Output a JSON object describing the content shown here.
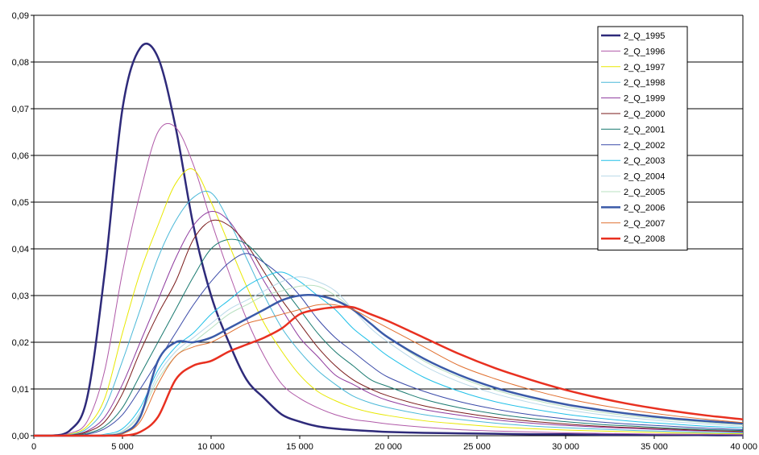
{
  "chart_data": {
    "type": "line",
    "title": "",
    "xlabel": "",
    "ylabel": "",
    "xlim": [
      0,
      40000
    ],
    "ylim": [
      0,
      0.09
    ],
    "x_ticks": [
      0,
      5000,
      10000,
      15000,
      20000,
      25000,
      30000,
      35000,
      40000
    ],
    "x_tick_labels": [
      "0",
      "5 000",
      "10 000",
      "15 000",
      "20 000",
      "25 000",
      "30 000",
      "35 000",
      "40 000"
    ],
    "y_ticks": [
      0,
      0.01,
      0.02,
      0.03,
      0.04,
      0.05,
      0.06,
      0.07,
      0.08,
      0.09
    ],
    "y_tick_labels": [
      "0,00",
      "0,01",
      "0,02",
      "0,03",
      "0,04",
      "0,05",
      "0,06",
      "0,07",
      "0,08",
      "0,09"
    ],
    "grid": "horizontal",
    "legend_position": "top-right",
    "x": [
      0,
      1000,
      2000,
      3000,
      4000,
      5000,
      6000,
      7000,
      8000,
      9000,
      10000,
      11000,
      12000,
      13000,
      14000,
      15000,
      16000,
      17000,
      18000,
      19000,
      20000,
      22000,
      24000,
      26000,
      28000,
      30000,
      32000,
      34000,
      36000,
      38000,
      40000
    ],
    "series": [
      {
        "name": "2_Q_1995",
        "color": "#2e2a7a",
        "width": 2.5,
        "values": [
          0,
          0,
          0.001,
          0.008,
          0.035,
          0.07,
          0.083,
          0.081,
          0.066,
          0.045,
          0.03,
          0.02,
          0.012,
          0.008,
          0.0045,
          0.003,
          0.002,
          0.0015,
          0.0012,
          0.001,
          0.0008,
          0.0006,
          0.0005,
          0.0004,
          0.0003,
          0.0003,
          0.0002,
          0.0002,
          0.0002,
          0.0001,
          0.0001
        ]
      },
      {
        "name": "2_Q_1996",
        "color": "#b05aa8",
        "width": 1,
        "values": [
          0,
          0,
          0.0005,
          0.003,
          0.014,
          0.035,
          0.052,
          0.065,
          0.066,
          0.058,
          0.046,
          0.035,
          0.025,
          0.017,
          0.011,
          0.008,
          0.006,
          0.0045,
          0.0035,
          0.003,
          0.0025,
          0.0018,
          0.0013,
          0.001,
          0.0008,
          0.0006,
          0.0005,
          0.0004,
          0.0003,
          0.0003,
          0.0002
        ]
      },
      {
        "name": "2_Q_1997",
        "color": "#e8e800",
        "width": 1,
        "values": [
          0,
          0,
          0.0003,
          0.002,
          0.008,
          0.022,
          0.035,
          0.045,
          0.054,
          0.057,
          0.05,
          0.041,
          0.032,
          0.024,
          0.018,
          0.013,
          0.0095,
          0.0075,
          0.006,
          0.005,
          0.0043,
          0.0032,
          0.0025,
          0.0019,
          0.0015,
          0.0012,
          0.001,
          0.0008,
          0.0006,
          0.0005,
          0.0004
        ]
      },
      {
        "name": "2_Q_1998",
        "color": "#4ab8d8",
        "width": 1,
        "values": [
          0,
          0,
          0.0002,
          0.0015,
          0.006,
          0.016,
          0.027,
          0.038,
          0.046,
          0.051,
          0.052,
          0.046,
          0.038,
          0.03,
          0.023,
          0.018,
          0.014,
          0.011,
          0.0085,
          0.007,
          0.006,
          0.0045,
          0.0035,
          0.0027,
          0.0021,
          0.0017,
          0.0014,
          0.0011,
          0.0009,
          0.0007,
          0.0006
        ]
      },
      {
        "name": "2_Q_1999",
        "color": "#8e3a9e",
        "width": 1,
        "values": [
          0,
          0,
          0.0001,
          0.001,
          0.004,
          0.011,
          0.02,
          0.029,
          0.038,
          0.045,
          0.048,
          0.046,
          0.04,
          0.033,
          0.027,
          0.021,
          0.017,
          0.013,
          0.011,
          0.009,
          0.0075,
          0.0056,
          0.0044,
          0.0034,
          0.0027,
          0.0022,
          0.0018,
          0.0015,
          0.0012,
          0.001,
          0.0008
        ]
      },
      {
        "name": "2_Q_2000",
        "color": "#7a1a1a",
        "width": 1,
        "values": [
          0,
          0,
          0.0001,
          0.0008,
          0.003,
          0.009,
          0.018,
          0.026,
          0.033,
          0.042,
          0.046,
          0.045,
          0.041,
          0.035,
          0.029,
          0.024,
          0.019,
          0.015,
          0.012,
          0.01,
          0.0085,
          0.0064,
          0.005,
          0.0039,
          0.0031,
          0.0025,
          0.002,
          0.0017,
          0.0014,
          0.0011,
          0.0009
        ]
      },
      {
        "name": "2_Q_2001",
        "color": "#1a7a70",
        "width": 1,
        "values": [
          0,
          0,
          0.0001,
          0.0005,
          0.002,
          0.006,
          0.013,
          0.02,
          0.027,
          0.034,
          0.04,
          0.042,
          0.041,
          0.037,
          0.032,
          0.027,
          0.022,
          0.018,
          0.015,
          0.012,
          0.0105,
          0.0078,
          0.006,
          0.0047,
          0.0037,
          0.003,
          0.0024,
          0.002,
          0.0016,
          0.0013,
          0.0011
        ]
      },
      {
        "name": "2_Q_2002",
        "color": "#3a4aa8",
        "width": 1,
        "values": [
          0,
          0,
          0,
          0.0003,
          0.0015,
          0.0045,
          0.01,
          0.016,
          0.022,
          0.028,
          0.033,
          0.037,
          0.039,
          0.037,
          0.034,
          0.03,
          0.025,
          0.021,
          0.018,
          0.015,
          0.0125,
          0.0095,
          0.0073,
          0.0057,
          0.0045,
          0.0036,
          0.0029,
          0.0024,
          0.002,
          0.0016,
          0.0013
        ]
      },
      {
        "name": "2_Q_2003",
        "color": "#20c0e8",
        "width": 1,
        "values": [
          0,
          0,
          0,
          0,
          0.0003,
          0.0015,
          0.006,
          0.014,
          0.019,
          0.022,
          0.026,
          0.029,
          0.032,
          0.034,
          0.035,
          0.033,
          0.03,
          0.027,
          0.023,
          0.02,
          0.017,
          0.0125,
          0.0095,
          0.0073,
          0.0058,
          0.0046,
          0.0037,
          0.003,
          0.0025,
          0.002,
          0.0017
        ]
      },
      {
        "name": "2_Q_2004",
        "color": "#b8d8e8",
        "width": 1,
        "values": [
          0,
          0,
          0,
          0,
          0.0002,
          0.001,
          0.005,
          0.013,
          0.018,
          0.021,
          0.024,
          0.027,
          0.029,
          0.031,
          0.033,
          0.034,
          0.033,
          0.031,
          0.027,
          0.023,
          0.02,
          0.015,
          0.0115,
          0.009,
          0.0071,
          0.0056,
          0.0045,
          0.0037,
          0.003,
          0.0025,
          0.002
        ]
      },
      {
        "name": "2_Q_2005",
        "color": "#b8e0c0",
        "width": 1,
        "values": [
          0,
          0,
          0,
          0,
          0.0002,
          0.0009,
          0.0045,
          0.012,
          0.017,
          0.02,
          0.023,
          0.026,
          0.028,
          0.03,
          0.031,
          0.032,
          0.032,
          0.03,
          0.027,
          0.024,
          0.021,
          0.016,
          0.0125,
          0.0098,
          0.0078,
          0.0062,
          0.005,
          0.0041,
          0.0034,
          0.0028,
          0.0023
        ]
      },
      {
        "name": "2_Q_2006",
        "color": "#3a5aa8",
        "width": 2.5,
        "values": [
          0,
          0,
          0,
          0,
          0,
          0.0005,
          0.004,
          0.016,
          0.02,
          0.02,
          0.021,
          0.023,
          0.025,
          0.027,
          0.029,
          0.03,
          0.03,
          0.029,
          0.027,
          0.024,
          0.021,
          0.0165,
          0.013,
          0.0103,
          0.0083,
          0.0067,
          0.0055,
          0.0045,
          0.0037,
          0.0031,
          0.0026
        ]
      },
      {
        "name": "2_Q_2007",
        "color": "#e07030",
        "width": 1,
        "values": [
          0,
          0,
          0,
          0,
          0,
          0.0004,
          0.003,
          0.011,
          0.017,
          0.019,
          0.02,
          0.022,
          0.024,
          0.025,
          0.026,
          0.027,
          0.028,
          0.028,
          0.027,
          0.025,
          0.023,
          0.019,
          0.015,
          0.0122,
          0.0099,
          0.008,
          0.0065,
          0.0053,
          0.0043,
          0.0035,
          0.0028
        ]
      },
      {
        "name": "2_Q_2008",
        "color": "#e83020",
        "width": 2.5,
        "values": [
          0,
          0,
          0,
          0,
          0,
          0,
          0.0008,
          0.004,
          0.012,
          0.015,
          0.016,
          0.018,
          0.0195,
          0.021,
          0.023,
          0.026,
          0.027,
          0.0275,
          0.0275,
          0.026,
          0.0245,
          0.021,
          0.0175,
          0.0145,
          0.012,
          0.0098,
          0.008,
          0.0065,
          0.0053,
          0.0043,
          0.0035
        ]
      }
    ]
  }
}
